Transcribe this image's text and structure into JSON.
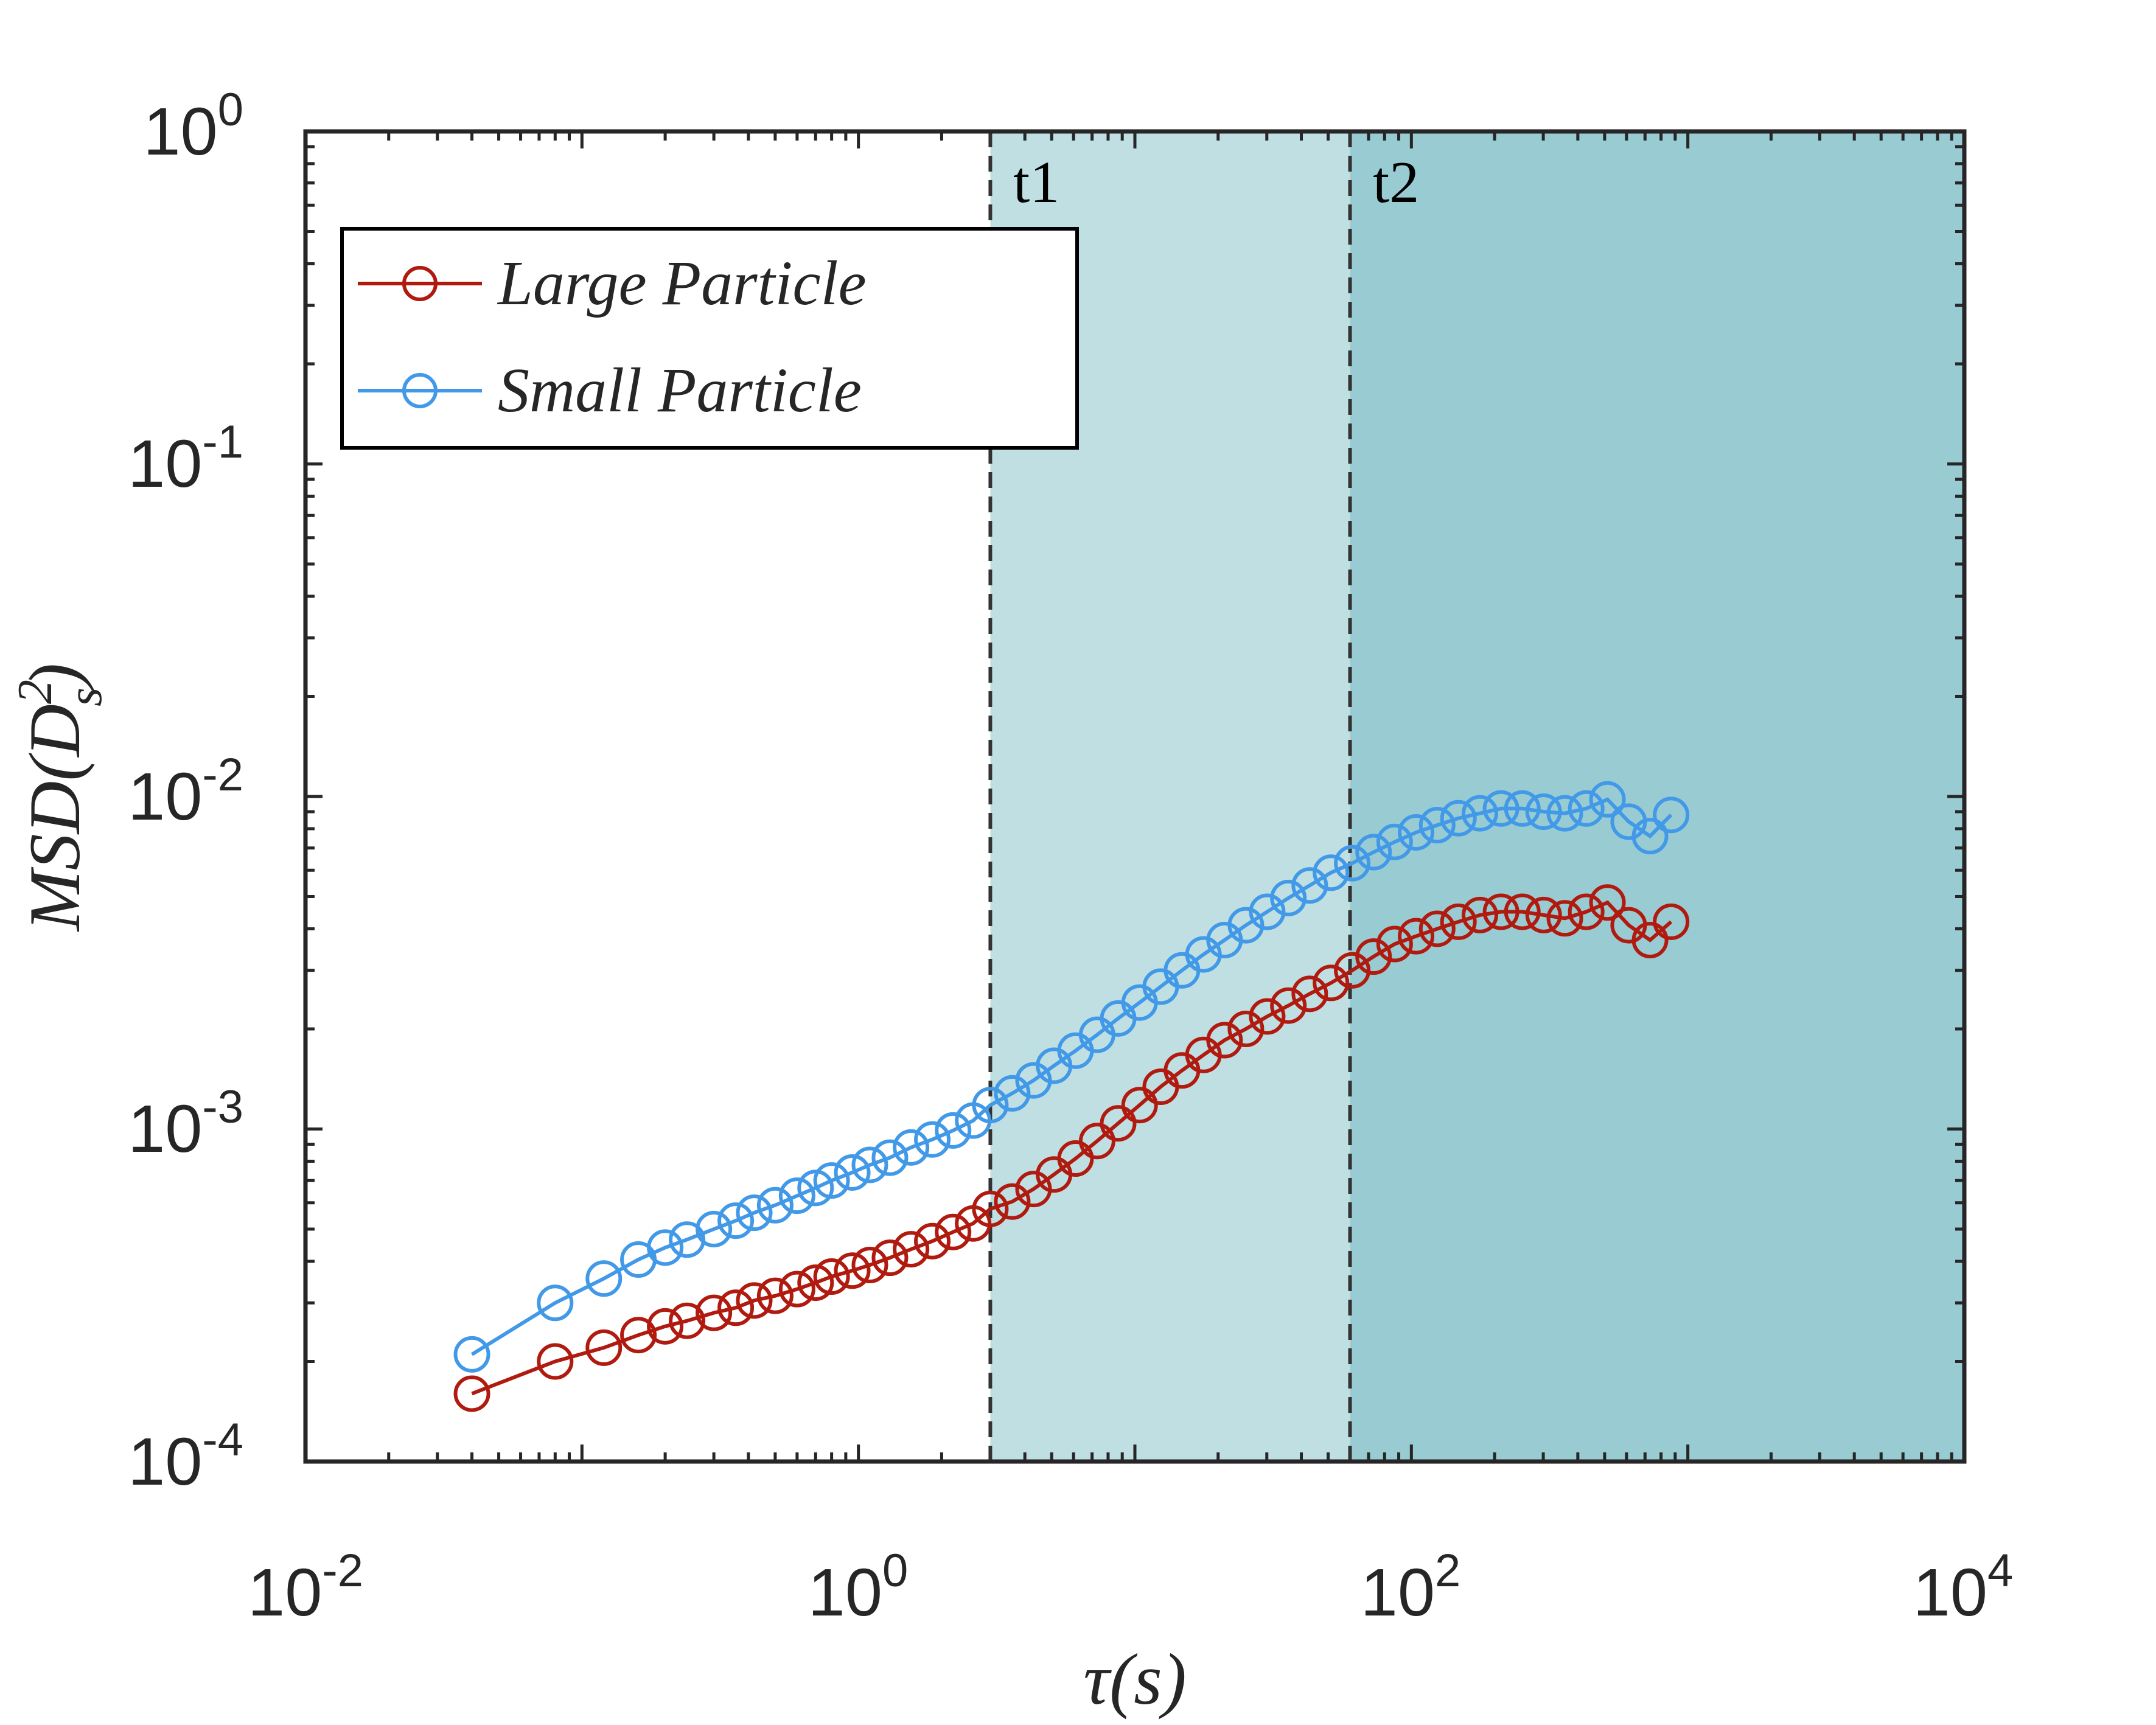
{
  "chart_data": {
    "type": "line",
    "title": "",
    "xscale": "log",
    "yscale": "log",
    "xlim": [
      0.01,
      10000
    ],
    "ylim": [
      0.0001,
      1
    ],
    "xlabel": "τ(s)",
    "ylabel": {
      "main": "MSD(D",
      "sup": "2",
      "sub": "s",
      "close": ")"
    },
    "xticks": [
      {
        "base": "10",
        "exp": "-2",
        "value": 0.01
      },
      {
        "base": "10",
        "exp": "0",
        "value": 1
      },
      {
        "base": "10",
        "exp": "2",
        "value": 100
      },
      {
        "base": "10",
        "exp": "4",
        "value": 10000
      }
    ],
    "yticks": [
      {
        "base": "10",
        "exp": "-4",
        "value": 0.0001
      },
      {
        "base": "10",
        "exp": "-3",
        "value": 0.001
      },
      {
        "base": "10",
        "exp": "-2",
        "value": 0.01
      },
      {
        "base": "10",
        "exp": "-1",
        "value": 0.1
      },
      {
        "base": "10",
        "exp": "0",
        "value": 1
      }
    ],
    "regions": [
      {
        "label": "t1",
        "from": 3,
        "to": 60,
        "color": "#bfdfe2"
      },
      {
        "label": "t2",
        "from": 60,
        "to": 10000,
        "color": "#99cbd3"
      }
    ],
    "legend_position": "top-left",
    "series": [
      {
        "name": "Large Particle",
        "color": "#b01a0f",
        "x": [
          0.04,
          0.08,
          0.12,
          0.16,
          0.2,
          0.24,
          0.3,
          0.36,
          0.42,
          0.5,
          0.6,
          0.7,
          0.8,
          0.95,
          1.1,
          1.3,
          1.55,
          1.85,
          2.2,
          2.6,
          3.0,
          3.6,
          4.3,
          5.1,
          6.1,
          7.3,
          8.7,
          10.4,
          12.4,
          14.8,
          17.7,
          21.1,
          25.2,
          30.1,
          35.9,
          42.9,
          51.2,
          61.1,
          73,
          87,
          104,
          124,
          148,
          177,
          211,
          252,
          301,
          359,
          429,
          512,
          611,
          730,
          870
        ],
        "y": [
          0.00016,
          0.0002,
          0.00022,
          0.00024,
          0.000255,
          0.000265,
          0.00028,
          0.00029,
          0.000305,
          0.000315,
          0.00033,
          0.000345,
          0.00036,
          0.000375,
          0.00039,
          0.00041,
          0.000435,
          0.00046,
          0.00049,
          0.00052,
          0.000575,
          0.000605,
          0.00066,
          0.00073,
          0.000815,
          0.00092,
          0.00104,
          0.00118,
          0.00134,
          0.0015,
          0.00167,
          0.00185,
          0.002,
          0.00218,
          0.00235,
          0.00255,
          0.00275,
          0.003,
          0.0033,
          0.0036,
          0.0038,
          0.004,
          0.0042,
          0.0044,
          0.0045,
          0.0045,
          0.0044,
          0.0043,
          0.0045,
          0.0048,
          0.0041,
          0.0037,
          0.0042
        ]
      },
      {
        "name": "Small Particle",
        "color": "#4199e8",
        "x": [
          0.04,
          0.08,
          0.12,
          0.16,
          0.2,
          0.24,
          0.3,
          0.36,
          0.42,
          0.5,
          0.6,
          0.7,
          0.8,
          0.95,
          1.1,
          1.3,
          1.55,
          1.85,
          2.2,
          2.6,
          3.0,
          3.6,
          4.3,
          5.1,
          6.1,
          7.3,
          8.7,
          10.4,
          12.4,
          14.8,
          17.7,
          21.1,
          25.2,
          30.1,
          35.9,
          42.9,
          51.2,
          61.1,
          73,
          87,
          104,
          124,
          148,
          177,
          211,
          252,
          301,
          359,
          429,
          512,
          611,
          730,
          870
        ],
        "y": [
          0.00021,
          0.0003,
          0.000355,
          0.000405,
          0.00044,
          0.000465,
          0.0005,
          0.00053,
          0.00056,
          0.00059,
          0.00063,
          0.000665,
          0.0007,
          0.00074,
          0.00078,
          0.00082,
          0.00088,
          0.00093,
          0.00099,
          0.00106,
          0.00118,
          0.00128,
          0.0014,
          0.00155,
          0.00172,
          0.00192,
          0.00215,
          0.0024,
          0.00268,
          0.003,
          0.00335,
          0.0037,
          0.0041,
          0.0045,
          0.00495,
          0.0054,
          0.0059,
          0.0063,
          0.0068,
          0.0073,
          0.0078,
          0.0082,
          0.0086,
          0.0089,
          0.0092,
          0.0092,
          0.009,
          0.0089,
          0.0092,
          0.0098,
          0.0084,
          0.0076,
          0.0088
        ]
      }
    ]
  }
}
